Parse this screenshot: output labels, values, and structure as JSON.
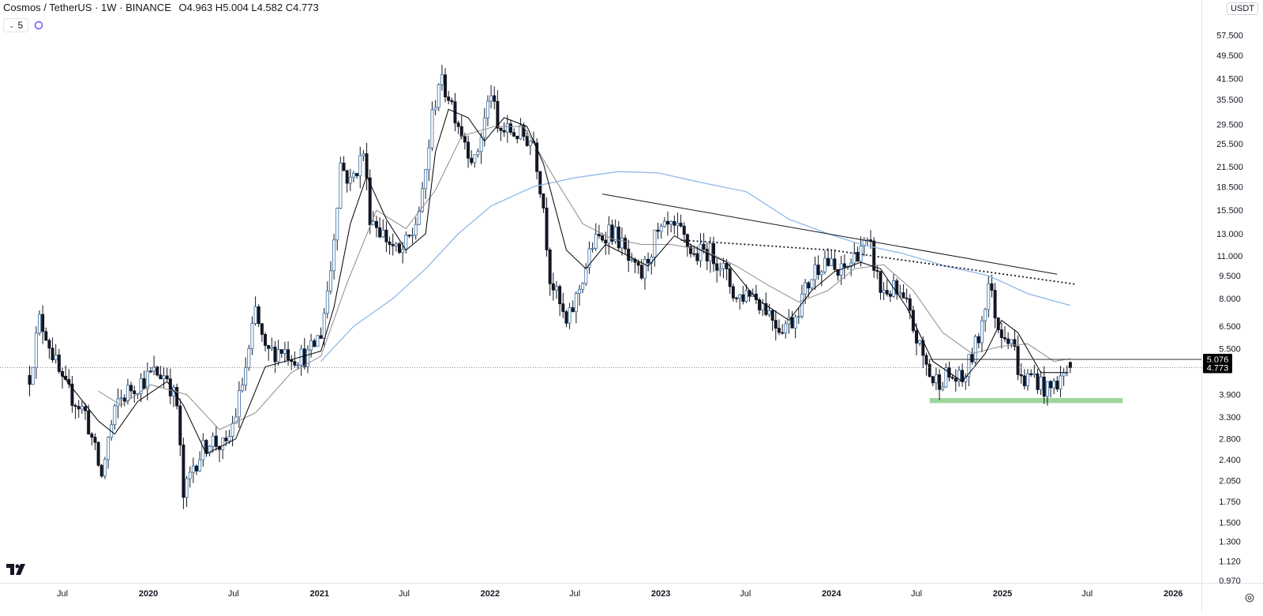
{
  "header": {
    "title": "Cosmos / TetherUS · 1W · BINANCE",
    "ohlc": [
      {
        "k": "O",
        "v": "4.963"
      },
      {
        "k": "H",
        "v": "5.004"
      },
      {
        "k": "L",
        "v": "4.582"
      },
      {
        "k": "C",
        "v": "4.773"
      }
    ],
    "indicator_count": "5",
    "currency": "USDT"
  },
  "colors": {
    "up": "#3a6ea5",
    "down": "#131722",
    "ma_fast": "#000000",
    "ma_mid": "#8c8c8c",
    "ma_slow": "#90b8e8",
    "support_zone": "#8ccf8c",
    "axis_text": "#131722",
    "price_tag_bg": "#000000"
  },
  "chart_data": {
    "type": "candlestick",
    "scale": "log",
    "ylim": [
      0.97,
      63
    ],
    "x_axis_labels": [
      {
        "label": "Jul",
        "date": "2019-07-01"
      },
      {
        "label": "2020",
        "date": "2020-01-01"
      },
      {
        "label": "Jul",
        "date": "2020-07-01"
      },
      {
        "label": "2021",
        "date": "2021-01-01"
      },
      {
        "label": "Jul",
        "date": "2021-07-01"
      },
      {
        "label": "2022",
        "date": "2022-01-01"
      },
      {
        "label": "Jul",
        "date": "2022-07-01"
      },
      {
        "label": "2023",
        "date": "2023-01-01"
      },
      {
        "label": "Jul",
        "date": "2023-07-01"
      },
      {
        "label": "2024",
        "date": "2024-01-01"
      },
      {
        "label": "Jul",
        "date": "2024-07-01"
      },
      {
        "label": "2025",
        "date": "2025-01-01"
      },
      {
        "label": "Jul",
        "date": "2025-07-01"
      },
      {
        "label": "2026",
        "date": "2026-01-01"
      }
    ],
    "y_ticks": [
      "57.500",
      "49.500",
      "41.500",
      "35.500",
      "29.500",
      "25.500",
      "21.500",
      "18.500",
      "15.500",
      "13.000",
      "11.000",
      "9.500",
      "8.000",
      "6.500",
      "5.500",
      "3.900",
      "3.300",
      "2.800",
      "2.400",
      "2.050",
      "1.750",
      "1.500",
      "1.300",
      "1.120",
      "0.970"
    ],
    "price_tags": [
      {
        "value": 5.076,
        "label": "5.076"
      },
      {
        "value": 4.773,
        "label": "4.773"
      }
    ],
    "close_path": [
      [
        "2019-04-22",
        4.5
      ],
      [
        "2019-05-13",
        6.8
      ],
      [
        "2019-05-27",
        6.2
      ],
      [
        "2019-07-01",
        4.2
      ],
      [
        "2019-08-19",
        3.4
      ],
      [
        "2019-09-23",
        2.1
      ],
      [
        "2019-10-07",
        2.8
      ],
      [
        "2019-10-28",
        3.7
      ],
      [
        "2019-11-25",
        4.1
      ],
      [
        "2019-12-16",
        4.3
      ],
      [
        "2020-01-13",
        4.6
      ],
      [
        "2020-02-10",
        4.5
      ],
      [
        "2020-03-02",
        3.6
      ],
      [
        "2020-03-16",
        1.8
      ],
      [
        "2020-04-06",
        2.3
      ],
      [
        "2020-05-11",
        2.8
      ],
      [
        "2020-06-15",
        2.6
      ],
      [
        "2020-07-06",
        3.4
      ],
      [
        "2020-08-03",
        5.3
      ],
      [
        "2020-08-17",
        7.3
      ],
      [
        "2020-09-07",
        5.3
      ],
      [
        "2020-10-12",
        5.5
      ],
      [
        "2020-11-09",
        5.2
      ],
      [
        "2020-12-07",
        5.2
      ],
      [
        "2021-01-04",
        6.2
      ],
      [
        "2021-01-25",
        10.0
      ],
      [
        "2021-02-15",
        22.0
      ],
      [
        "2021-03-08",
        19.0
      ],
      [
        "2021-04-05",
        24.0
      ],
      [
        "2021-04-19",
        15.0
      ],
      [
        "2021-05-17",
        13.0
      ],
      [
        "2021-06-21",
        11.0
      ],
      [
        "2021-07-19",
        13.0
      ],
      [
        "2021-08-09",
        17.0
      ],
      [
        "2021-08-30",
        31.0
      ],
      [
        "2021-09-13",
        41.0
      ],
      [
        "2021-10-04",
        37.0
      ],
      [
        "2021-11-01",
        28.0
      ],
      [
        "2021-11-29",
        22.0
      ],
      [
        "2022-01-03",
        38.0
      ],
      [
        "2022-01-17",
        28.0
      ],
      [
        "2022-02-14",
        28.0
      ],
      [
        "2022-03-14",
        27.0
      ],
      [
        "2022-04-04",
        26.0
      ],
      [
        "2022-04-25",
        16.0
      ],
      [
        "2022-05-09",
        9.5
      ],
      [
        "2022-06-13",
        6.5
      ],
      [
        "2022-07-04",
        8.0
      ],
      [
        "2022-08-08",
        12.0
      ],
      [
        "2022-08-22",
        12.5
      ],
      [
        "2022-09-12",
        13.5
      ],
      [
        "2022-10-03",
        12.5
      ],
      [
        "2022-10-31",
        10.0
      ],
      [
        "2022-11-21",
        9.5
      ],
      [
        "2022-12-19",
        12.5
      ],
      [
        "2023-01-16",
        13.5
      ],
      [
        "2023-02-13",
        13.0
      ],
      [
        "2023-03-13",
        11.0
      ],
      [
        "2023-04-10",
        11.5
      ],
      [
        "2023-05-08",
        10.5
      ],
      [
        "2023-06-12",
        8.0
      ],
      [
        "2023-07-10",
        8.5
      ],
      [
        "2023-08-14",
        7.5
      ],
      [
        "2023-09-11",
        6.5
      ],
      [
        "2023-10-09",
        6.8
      ],
      [
        "2023-11-06",
        8.5
      ],
      [
        "2023-11-27",
        10.0
      ],
      [
        "2023-12-18",
        10.8
      ],
      [
        "2024-01-15",
        9.5
      ],
      [
        "2024-02-12",
        10.5
      ],
      [
        "2024-03-04",
        12.0
      ],
      [
        "2024-03-25",
        11.5
      ],
      [
        "2024-04-15",
        8.5
      ],
      [
        "2024-05-13",
        8.5
      ],
      [
        "2024-06-10",
        7.5
      ],
      [
        "2024-07-08",
        5.5
      ],
      [
        "2024-08-05",
        4.3
      ],
      [
        "2024-09-02",
        4.5
      ],
      [
        "2024-10-07",
        4.3
      ],
      [
        "2024-11-11",
        6.0
      ],
      [
        "2024-12-02",
        9.0
      ],
      [
        "2024-12-23",
        6.5
      ],
      [
        "2025-01-20",
        6.0
      ],
      [
        "2025-02-10",
        4.3
      ],
      [
        "2025-03-10",
        4.5
      ],
      [
        "2025-04-07",
        4.0
      ],
      [
        "2025-05-05",
        4.4
      ],
      [
        "2025-05-26",
        4.773
      ]
    ],
    "ma_fast": [
      [
        "2019-07-01",
        4.5
      ],
      [
        "2019-09-16",
        3.2
      ],
      [
        "2019-10-21",
        2.9
      ],
      [
        "2019-12-09",
        3.7
      ],
      [
        "2020-02-10",
        4.3
      ],
      [
        "2020-03-16",
        3.6
      ],
      [
        "2020-05-04",
        2.5
      ],
      [
        "2020-07-06",
        2.8
      ],
      [
        "2020-09-07",
        4.8
      ],
      [
        "2020-11-09",
        5.1
      ],
      [
        "2021-01-04",
        5.4
      ],
      [
        "2021-02-01",
        7.5
      ],
      [
        "2021-03-08",
        14.0
      ],
      [
        "2021-04-12",
        20.0
      ],
      [
        "2021-05-24",
        14.5
      ],
      [
        "2021-07-05",
        11.5
      ],
      [
        "2021-08-16",
        13.0
      ],
      [
        "2021-09-06",
        24.0
      ],
      [
        "2021-10-04",
        33.0
      ],
      [
        "2021-11-15",
        31.0
      ],
      [
        "2021-12-20",
        26.0
      ],
      [
        "2022-01-31",
        31.0
      ],
      [
        "2022-03-21",
        29.0
      ],
      [
        "2022-04-25",
        22.0
      ],
      [
        "2022-06-13",
        11.5
      ],
      [
        "2022-07-25",
        10.0
      ],
      [
        "2022-09-05",
        12.0
      ],
      [
        "2022-10-24",
        11.0
      ],
      [
        "2022-12-05",
        10.2
      ],
      [
        "2023-01-30",
        12.8
      ],
      [
        "2023-03-27",
        11.5
      ],
      [
        "2023-05-22",
        10.5
      ],
      [
        "2023-07-24",
        8.0
      ],
      [
        "2023-10-02",
        6.8
      ],
      [
        "2023-11-20",
        8.5
      ],
      [
        "2024-01-08",
        9.8
      ],
      [
        "2024-03-04",
        10.5
      ],
      [
        "2024-04-15",
        10.0
      ],
      [
        "2024-06-10",
        7.5
      ],
      [
        "2024-08-05",
        5.0
      ],
      [
        "2024-10-07",
        4.3
      ],
      [
        "2024-11-25",
        5.3
      ],
      [
        "2024-12-30",
        6.8
      ],
      [
        "2025-02-03",
        6.2
      ],
      [
        "2025-03-24",
        4.6
      ],
      [
        "2025-05-19",
        4.6
      ]
    ],
    "ma_mid": [
      [
        "2019-09-16",
        4.0
      ],
      [
        "2019-11-04",
        3.6
      ],
      [
        "2020-01-06",
        4.2
      ],
      [
        "2020-03-23",
        3.9
      ],
      [
        "2020-06-01",
        3.0
      ],
      [
        "2020-08-17",
        3.4
      ],
      [
        "2020-11-02",
        4.6
      ],
      [
        "2021-01-04",
        5.2
      ],
      [
        "2021-03-01",
        9.0
      ],
      [
        "2021-05-03",
        15.5
      ],
      [
        "2021-07-05",
        13.5
      ],
      [
        "2021-09-06",
        18.0
      ],
      [
        "2021-11-01",
        27.0
      ],
      [
        "2022-01-10",
        29.0
      ],
      [
        "2022-03-14",
        29.0
      ],
      [
        "2022-05-16",
        20.0
      ],
      [
        "2022-07-18",
        14.0
      ],
      [
        "2022-09-19",
        12.5
      ],
      [
        "2022-11-21",
        12.0
      ],
      [
        "2023-01-23",
        12.0
      ],
      [
        "2023-04-03",
        11.5
      ],
      [
        "2023-06-12",
        10.2
      ],
      [
        "2023-08-21",
        8.8
      ],
      [
        "2023-10-23",
        7.8
      ],
      [
        "2023-12-25",
        8.5
      ],
      [
        "2024-02-19",
        10.0
      ],
      [
        "2024-04-22",
        10.3
      ],
      [
        "2024-06-24",
        8.5
      ],
      [
        "2024-08-26",
        6.2
      ],
      [
        "2024-10-28",
        5.3
      ],
      [
        "2024-12-30",
        5.6
      ],
      [
        "2025-02-24",
        5.7
      ],
      [
        "2025-04-21",
        5.0
      ],
      [
        "2025-05-26",
        5.1
      ]
    ],
    "ma_slow": [
      [
        "2021-01-04",
        5.0
      ],
      [
        "2021-03-15",
        6.5
      ],
      [
        "2021-06-07",
        8.0
      ],
      [
        "2021-08-16",
        10.0
      ],
      [
        "2021-10-25",
        13.0
      ],
      [
        "2022-01-03",
        16.0
      ],
      [
        "2022-04-04",
        18.5
      ],
      [
        "2022-07-04",
        19.8
      ],
      [
        "2022-10-03",
        20.7
      ],
      [
        "2022-12-26",
        20.5
      ],
      [
        "2023-04-03",
        19.0
      ],
      [
        "2023-07-03",
        17.8
      ],
      [
        "2023-10-02",
        14.5
      ],
      [
        "2023-12-25",
        13.0
      ],
      [
        "2024-03-04",
        12.0
      ],
      [
        "2024-06-03",
        11.2
      ],
      [
        "2024-09-02",
        10.2
      ],
      [
        "2024-12-02",
        9.5
      ],
      [
        "2025-02-24",
        8.3
      ],
      [
        "2025-05-26",
        7.6
      ]
    ],
    "trendline": [
      [
        "2022-08-29",
        17.5
      ],
      [
        "2025-04-28",
        9.6
      ]
    ],
    "dotted_line": [
      [
        "2023-02-13",
        12.4
      ],
      [
        "2024-01-01",
        11.5
      ],
      [
        "2025-06-09",
        8.9
      ]
    ],
    "support_zone": {
      "x0": "2024-07-29",
      "x1": "2025-09-15",
      "y0": 3.66,
      "y1": 3.8
    },
    "current_price_line": 4.773,
    "last_price_line": {
      "value": 5.076,
      "x0": "2024-07-29"
    }
  }
}
